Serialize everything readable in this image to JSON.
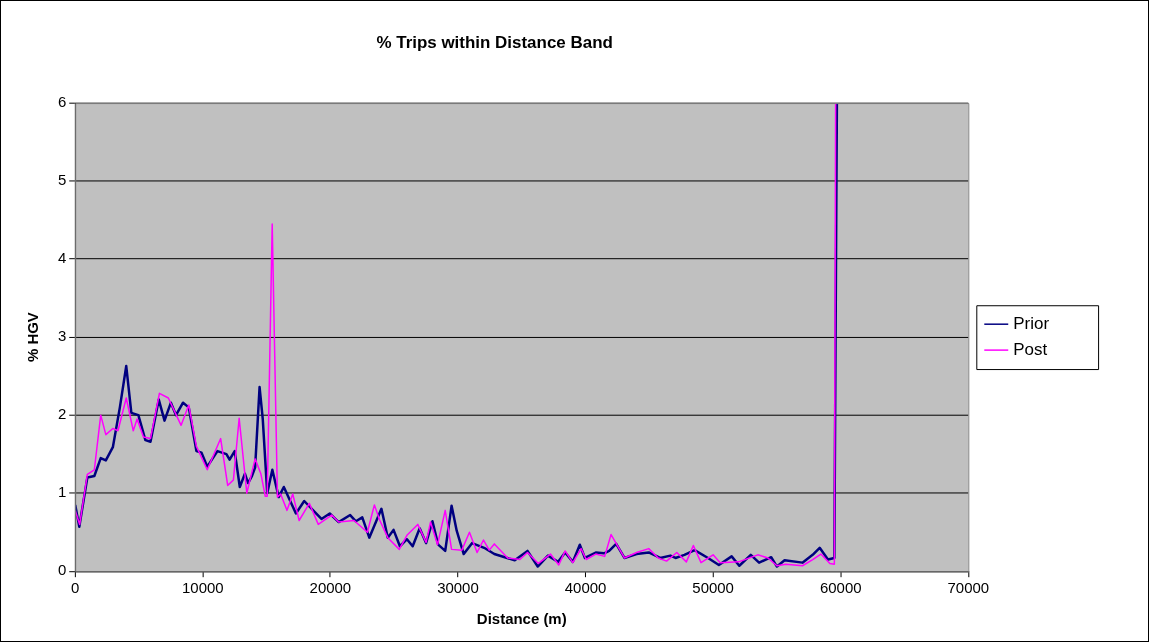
{
  "chart_data": {
    "type": "line",
    "title": "% Trips within Distance Band",
    "xlabel": "Distance (m)",
    "ylabel": "% HGV",
    "xlim": [
      0,
      70000
    ],
    "xticks": [
      0,
      10000,
      20000,
      30000,
      40000,
      50000,
      60000,
      70000
    ],
    "ylim": [
      0,
      6
    ],
    "yticks": [
      0,
      1,
      2,
      3,
      4,
      5,
      6
    ],
    "grid": "y",
    "legend": "right",
    "marker": "none",
    "line_style": "solid",
    "series": [
      {
        "name": "Prior",
        "color": "#000080",
        "x": [
          0,
          320,
          950,
          1500,
          2000,
          2400,
          2950,
          3500,
          4000,
          4400,
          4950,
          5500,
          5900,
          6550,
          7000,
          7500,
          7900,
          8450,
          8900,
          9500,
          9900,
          10350,
          11150,
          11850,
          12100,
          12500,
          12900,
          13300,
          13550,
          13850,
          14100,
          14450,
          14700,
          15050,
          15450,
          15950,
          16350,
          17300,
          17950,
          18650,
          19300,
          19950,
          20650,
          21550,
          22000,
          22500,
          23050,
          24000,
          24500,
          24950,
          25450,
          26000,
          26450,
          27000,
          27500,
          28000,
          28450,
          29000,
          29500,
          29900,
          30450,
          31100,
          32050,
          32850,
          34450,
          35450,
          36250,
          37050,
          37850,
          38400,
          39000,
          39550,
          39950,
          40800,
          41450,
          41850,
          42400,
          43050,
          44000,
          44950,
          45850,
          46650,
          47050,
          47750,
          48550,
          49600,
          50450,
          51450,
          52050,
          52950,
          53600,
          54550,
          55000,
          55600,
          57000,
          57800,
          58350,
          59000,
          59500,
          59700
        ],
        "values": [
          0.85,
          0.57,
          1.2,
          1.22,
          1.45,
          1.42,
          1.59,
          2.1,
          2.63,
          2.03,
          2.0,
          1.68,
          1.66,
          2.2,
          1.93,
          2.16,
          2.0,
          2.16,
          2.1,
          1.54,
          1.52,
          1.34,
          1.54,
          1.5,
          1.43,
          1.54,
          1.08,
          1.25,
          1.13,
          1.22,
          1.33,
          2.36,
          1.95,
          1.0,
          1.3,
          0.95,
          1.08,
          0.74,
          0.9,
          0.78,
          0.67,
          0.74,
          0.63,
          0.72,
          0.64,
          0.69,
          0.43,
          0.8,
          0.43,
          0.53,
          0.32,
          0.41,
          0.32,
          0.55,
          0.36,
          0.64,
          0.34,
          0.26,
          0.84,
          0.52,
          0.22,
          0.36,
          0.3,
          0.22,
          0.14,
          0.26,
          0.06,
          0.2,
          0.12,
          0.24,
          0.12,
          0.34,
          0.17,
          0.24,
          0.23,
          0.26,
          0.35,
          0.17,
          0.22,
          0.24,
          0.17,
          0.2,
          0.17,
          0.21,
          0.27,
          0.17,
          0.08,
          0.19,
          0.07,
          0.21,
          0.11,
          0.18,
          0.06,
          0.14,
          0.11,
          0.21,
          0.3,
          0.15,
          0.17,
          6
        ]
      },
      {
        "name": "Post",
        "color": "#ff00ff",
        "x": [
          0,
          350,
          950,
          1500,
          2000,
          2400,
          2950,
          3350,
          4000,
          4550,
          4850,
          5350,
          5900,
          6600,
          7300,
          8300,
          8900,
          9500,
          10350,
          11400,
          11950,
          12400,
          12850,
          13450,
          14100,
          14550,
          14900,
          15050,
          15440,
          15850,
          16100,
          16600,
          17050,
          17550,
          18350,
          19050,
          20100,
          20650,
          21850,
          22900,
          23450,
          23850,
          24500,
          25400,
          26000,
          26850,
          27500,
          27850,
          28400,
          29000,
          29500,
          30300,
          30900,
          31500,
          32000,
          32450,
          32850,
          33900,
          34850,
          35450,
          36300,
          37250,
          37900,
          38400,
          39000,
          39650,
          40050,
          40800,
          41500,
          42000,
          43050,
          44000,
          44950,
          45700,
          46350,
          47150,
          47900,
          48450,
          49050,
          50000,
          50550,
          52000,
          53500,
          54300,
          55000,
          55700,
          57000,
          57800,
          58450,
          59150,
          59500,
          59600
        ],
        "values": [
          0.78,
          0.6,
          1.24,
          1.3,
          2.0,
          1.75,
          1.83,
          1.8,
          2.22,
          1.8,
          1.95,
          1.72,
          1.7,
          2.28,
          2.22,
          1.87,
          2.13,
          1.6,
          1.3,
          1.7,
          1.1,
          1.17,
          1.96,
          1.0,
          1.44,
          1.25,
          0.96,
          0.96,
          4.45,
          0.95,
          0.99,
          0.78,
          0.99,
          0.65,
          0.87,
          0.6,
          0.72,
          0.63,
          0.65,
          0.5,
          0.85,
          0.66,
          0.43,
          0.28,
          0.46,
          0.6,
          0.37,
          0.63,
          0.34,
          0.78,
          0.28,
          0.27,
          0.5,
          0.24,
          0.4,
          0.27,
          0.35,
          0.17,
          0.15,
          0.24,
          0.1,
          0.22,
          0.08,
          0.26,
          0.11,
          0.29,
          0.15,
          0.22,
          0.19,
          0.47,
          0.17,
          0.24,
          0.29,
          0.17,
          0.13,
          0.24,
          0.12,
          0.33,
          0.11,
          0.21,
          0.11,
          0.12,
          0.21,
          0.17,
          0.07,
          0.09,
          0.07,
          0.15,
          0.22,
          0.1,
          0.09,
          6
        ]
      }
    ]
  }
}
